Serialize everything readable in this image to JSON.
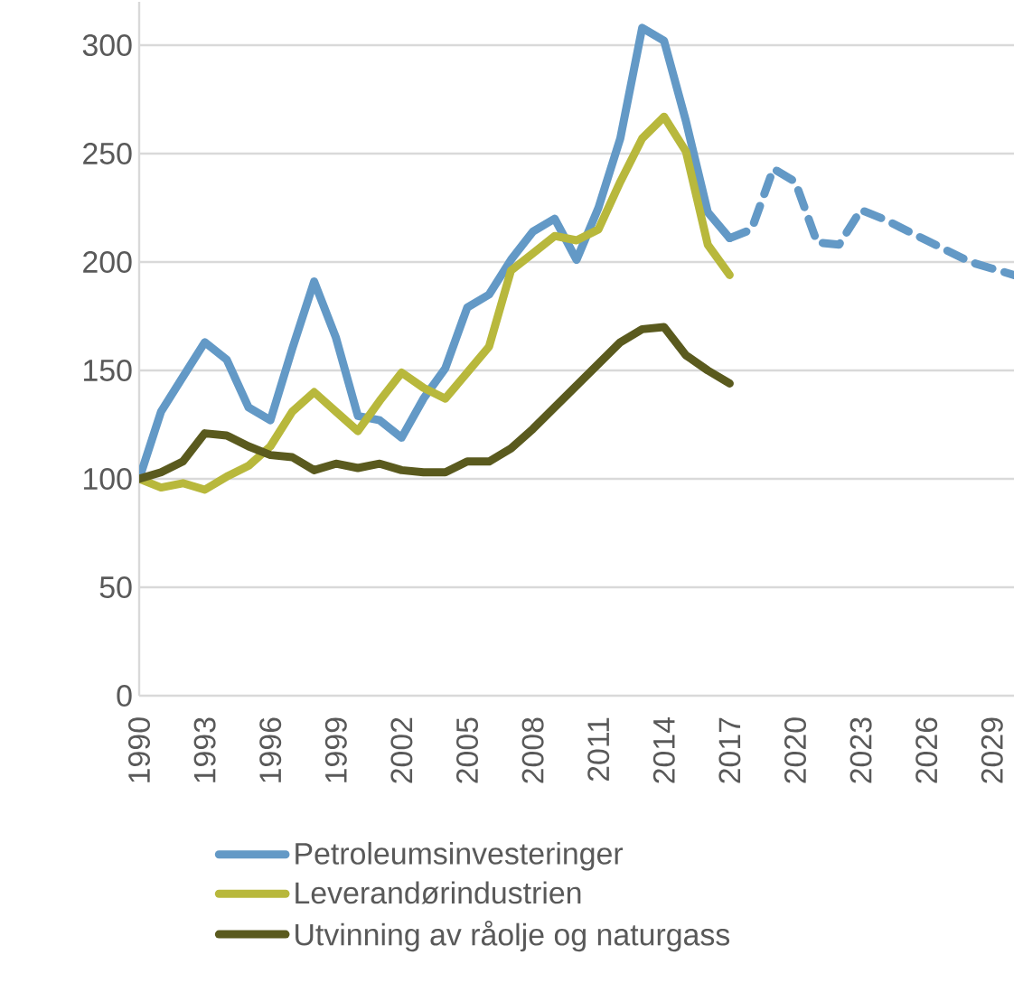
{
  "chart_data": {
    "type": "line",
    "xlim": [
      1990,
      2030
    ],
    "xticks": [
      1990,
      1993,
      1996,
      1999,
      2002,
      2005,
      2008,
      2011,
      2014,
      2017,
      2020,
      2023,
      2026,
      2029
    ],
    "ylim": [
      0,
      320
    ],
    "yticks": [
      0,
      50,
      100,
      150,
      200,
      250,
      300
    ],
    "grid": "y",
    "legend": "bottom",
    "series": [
      {
        "name": "Petroleumsinvesteringer",
        "color": "#6399c6",
        "line_style": "solid",
        "x": [
          1990,
          1991,
          1992,
          1993,
          1994,
          1995,
          1996,
          1997,
          1998,
          1999,
          2000,
          2001,
          2002,
          2003,
          2004,
          2005,
          2006,
          2007,
          2008,
          2009,
          2010,
          2011,
          2012,
          2013,
          2014,
          2015,
          2016,
          2017
        ],
        "values": [
          100,
          131,
          147,
          163,
          155,
          133,
          127,
          160,
          191,
          165,
          129,
          127,
          119,
          137,
          151,
          179,
          185,
          201,
          214,
          220,
          201,
          225,
          257,
          308,
          302,
          265,
          223,
          211
        ]
      },
      {
        "name": "Leverandørindustrien",
        "color": "#b8b83c",
        "line_style": "solid",
        "x": [
          1990,
          1991,
          1992,
          1993,
          1994,
          1995,
          1996,
          1997,
          1998,
          1999,
          2000,
          2001,
          2002,
          2003,
          2004,
          2005,
          2006,
          2007,
          2008,
          2009,
          2010,
          2011,
          2012,
          2013,
          2014,
          2015,
          2016,
          2017
        ],
        "values": [
          100,
          96,
          98,
          95,
          101,
          106,
          115,
          131,
          140,
          131,
          122,
          136,
          149,
          142,
          137,
          149,
          161,
          196,
          204,
          212,
          210,
          215,
          237,
          257,
          267,
          251,
          208,
          194
        ]
      },
      {
        "name": "Utvinning av råolje og naturgass",
        "color": "#5a5a1e",
        "line_style": "solid",
        "x": [
          1990,
          1991,
          1992,
          1993,
          1994,
          1995,
          1996,
          1997,
          1998,
          1999,
          2000,
          2001,
          2002,
          2003,
          2004,
          2005,
          2006,
          2007,
          2008,
          2009,
          2010,
          2011,
          2012,
          2013,
          2014,
          2015,
          2016,
          2017
        ],
        "values": [
          100,
          103,
          108,
          121,
          120,
          115,
          111,
          110,
          104,
          107,
          105,
          107,
          104,
          103,
          103,
          108,
          108,
          114,
          123,
          133,
          143,
          153,
          163,
          169,
          170,
          157,
          150,
          144
        ]
      },
      {
        "color": "#6399c6",
        "line_style": "dashed",
        "x": [
          2017,
          2018,
          2019,
          2020,
          2021,
          2022,
          2023,
          2024,
          2025,
          2026,
          2027,
          2028,
          2029,
          2030
        ],
        "values": [
          211,
          215,
          243,
          237,
          209,
          208,
          224,
          220,
          215,
          210,
          205,
          200,
          197,
          194
        ]
      }
    ]
  }
}
